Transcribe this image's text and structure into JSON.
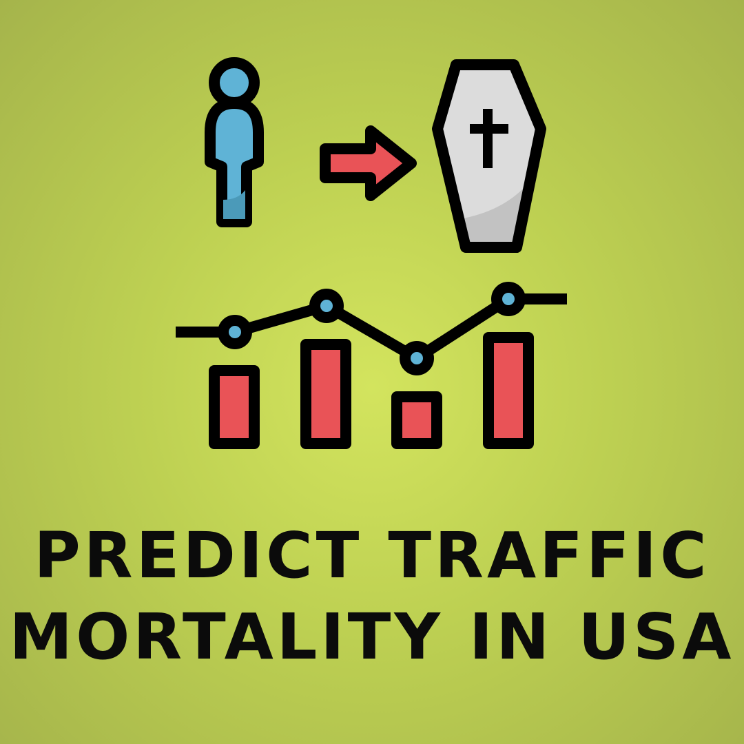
{
  "icons": {
    "person": "person-icon",
    "arrow": "arrow-right-icon",
    "coffin": "coffin-icon",
    "cross": "cross-icon",
    "chart": "bar-line-chart-icon"
  },
  "colors": {
    "background": "#c4d657",
    "person_fill": "#5fb3d6",
    "arrow_fill": "#e95357",
    "coffin_fill": "#dcdcdc",
    "bar_fill": "#e95357",
    "point_fill": "#5fb3d6",
    "outline": "#000000"
  },
  "title": {
    "line1": "PREDICT TRAFFIC",
    "line2": "MORTALITY IN USA"
  }
}
